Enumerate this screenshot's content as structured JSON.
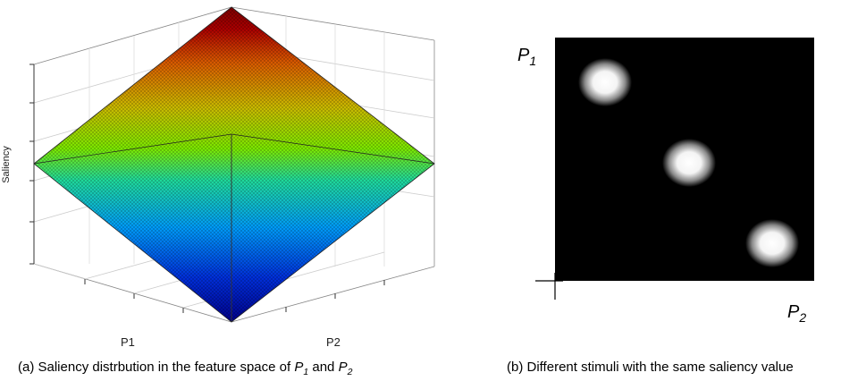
{
  "panel_a": {
    "y_label": "Saliency",
    "x_label_left": "P1",
    "x_label_right": "P2",
    "caption": {
      "prefix": "(a) Saliency distrbution in the feature space of ",
      "v1": "P",
      "v1_sub": "1",
      "mid": " and ",
      "v2": "P",
      "v2_sub": "2"
    },
    "colormap": [
      "#00008f",
      "#0050ff",
      "#00c0ff",
      "#40ff80",
      "#c8e000",
      "#ff8000",
      "#c00000",
      "#800000"
    ]
  },
  "panel_b": {
    "p1_label": "P",
    "p1_sub": "1",
    "p2_label": "P",
    "p2_sub": "2",
    "caption": "(b) Different stimuli with the same saliency value",
    "background_color": "#000000",
    "stimulus_color": "#ffffff",
    "stimuli_count": 3
  }
}
